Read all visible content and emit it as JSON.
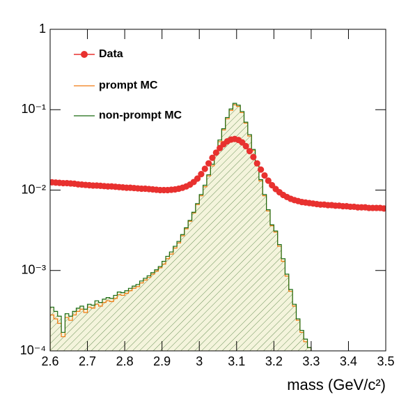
{
  "chart_data": {
    "type": "histogram",
    "x_label": "mass (GeV/c²)",
    "log_y": true,
    "xlim": [
      2.6,
      3.5
    ],
    "ylim": [
      0.0001,
      1
    ],
    "xticks": [
      2.6,
      2.7,
      2.8,
      2.9,
      3,
      3.1,
      3.2,
      3.3,
      3.4,
      3.5
    ],
    "yticks": [
      {
        "value": 0.0001,
        "label": "10⁻⁴"
      },
      {
        "value": 0.001,
        "label": "10⁻³"
      },
      {
        "value": 0.01,
        "label": "10⁻²"
      },
      {
        "value": 0.1,
        "label": "10⁻¹"
      },
      1
    ],
    "legend": "top-left",
    "bins": [
      2.6,
      2.61,
      2.62,
      2.63,
      2.64,
      2.65,
      2.66,
      2.67,
      2.68,
      2.69,
      2.7,
      2.71,
      2.72,
      2.73,
      2.74,
      2.75,
      2.76,
      2.77,
      2.78,
      2.79,
      2.8,
      2.81,
      2.82,
      2.83,
      2.84,
      2.85,
      2.86,
      2.87,
      2.88,
      2.89,
      2.9,
      2.91,
      2.92,
      2.93,
      2.94,
      2.95,
      2.96,
      2.97,
      2.98,
      2.99,
      3.0,
      3.01,
      3.02,
      3.03,
      3.04,
      3.05,
      3.06,
      3.07,
      3.08,
      3.09,
      3.1,
      3.11,
      3.12,
      3.13,
      3.14,
      3.15,
      3.16,
      3.17,
      3.18,
      3.19,
      3.2,
      3.21,
      3.22,
      3.23,
      3.24,
      3.25,
      3.26,
      3.27,
      3.28,
      3.29,
      3.3,
      3.31,
      3.32,
      3.33,
      3.34,
      3.35,
      3.36,
      3.37,
      3.38,
      3.39,
      3.4,
      3.41,
      3.42,
      3.43,
      3.44,
      3.45,
      3.46,
      3.47,
      3.48,
      3.49,
      3.5
    ],
    "series": [
      {
        "name": "Data",
        "color": "#e8312f",
        "style": "markers",
        "values": [
          0.0125,
          0.0124,
          0.0123,
          0.0122,
          0.0122,
          0.0121,
          0.012,
          0.0118,
          0.0117,
          0.0116,
          0.0115,
          0.0114,
          0.0114,
          0.0113,
          0.0112,
          0.0111,
          0.0111,
          0.011,
          0.0109,
          0.0108,
          0.0107,
          0.0107,
          0.0106,
          0.0105,
          0.0104,
          0.0104,
          0.0103,
          0.0102,
          0.0101,
          0.01,
          0.01,
          0.01,
          0.0101,
          0.0102,
          0.0104,
          0.0107,
          0.0111,
          0.0117,
          0.0126,
          0.0139,
          0.0158,
          0.0184,
          0.0215,
          0.0252,
          0.0292,
          0.0333,
          0.0372,
          0.0404,
          0.0425,
          0.0432,
          0.042,
          0.0392,
          0.0352,
          0.0305,
          0.0258,
          0.0215,
          0.018,
          0.0152,
          0.0131,
          0.0115,
          0.0103,
          0.0094,
          0.0087,
          0.0082,
          0.0078,
          0.0075,
          0.0073,
          0.0071,
          0.007,
          0.0069,
          0.0068,
          0.0067,
          0.0066,
          0.0066,
          0.0065,
          0.0065,
          0.0064,
          0.0064,
          0.0063,
          0.0063,
          0.0062,
          0.0062,
          0.0061,
          0.0061,
          0.0061,
          0.006,
          0.006,
          0.006,
          0.006,
          0.0059
        ]
      },
      {
        "name": "prompt MC",
        "color": "#f07a10",
        "style": "step",
        "values": [
          0.00028,
          0.00025,
          0.00022,
          0.00015,
          0.00026,
          0.00024,
          0.00028,
          0.00031,
          0.00033,
          0.0003,
          0.00035,
          0.00034,
          0.00038,
          0.00036,
          0.0004,
          0.00042,
          0.00041,
          0.00045,
          0.0005,
          0.00049,
          0.00052,
          0.00056,
          0.0006,
          0.00063,
          0.0007,
          0.00076,
          0.00082,
          0.0009,
          0.00098,
          0.00108,
          0.0012,
          0.0014,
          0.0016,
          0.0019,
          0.0022,
          0.0027,
          0.0033,
          0.0041,
          0.0052,
          0.0066,
          0.0085,
          0.011,
          0.015,
          0.02,
          0.028,
          0.04,
          0.056,
          0.077,
          0.098,
          0.115,
          0.11,
          0.092,
          0.068,
          0.047,
          0.031,
          0.02,
          0.013,
          0.0085,
          0.0055,
          0.0036,
          0.003,
          0.002,
          0.0013,
          0.00085,
          0.00055,
          0.00036,
          0.00024,
          0.00017,
          0.00013,
          0.00011,
          null,
          null,
          null,
          null,
          null,
          null,
          null,
          null,
          null,
          null,
          null,
          null,
          null,
          null,
          null,
          null,
          null,
          null,
          null,
          null
        ]
      },
      {
        "name": "non-prompt MC",
        "color": "#1a6b12",
        "style": "step",
        "values": [
          0.00035,
          0.00031,
          0.00027,
          0.00017,
          0.00029,
          0.00027,
          0.00031,
          0.00034,
          0.00036,
          0.00033,
          0.00038,
          0.00037,
          0.00042,
          0.0004,
          0.00044,
          0.00046,
          0.00045,
          0.00049,
          0.00054,
          0.00053,
          0.00056,
          0.0006,
          0.00064,
          0.00067,
          0.00074,
          0.0008,
          0.00086,
          0.00094,
          0.00102,
          0.00112,
          0.0013,
          0.0015,
          0.0017,
          0.002,
          0.0023,
          0.0028,
          0.0034,
          0.0042,
          0.0053,
          0.0068,
          0.0088,
          0.0115,
          0.0155,
          0.021,
          0.029,
          0.042,
          0.058,
          0.08,
          0.102,
          0.12,
          0.114,
          0.095,
          0.07,
          0.049,
          0.032,
          0.021,
          0.0135,
          0.0088,
          0.0057,
          0.0037,
          0.0031,
          0.0021,
          0.0014,
          0.0009,
          0.00058,
          0.00038,
          0.00025,
          0.00018,
          0.00014,
          0.00011,
          null,
          null,
          null,
          null,
          null,
          null,
          null,
          null,
          null,
          null,
          null,
          null,
          null,
          null,
          null,
          null,
          null,
          null,
          null,
          null
        ]
      }
    ]
  }
}
